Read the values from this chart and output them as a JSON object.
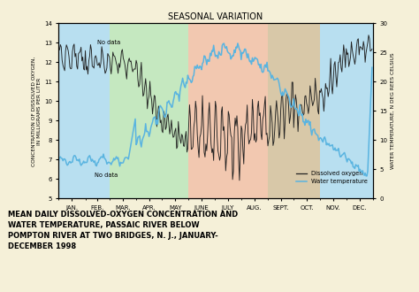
{
  "title": "SEASONAL VARIATION",
  "caption": "MEAN DAILY DISSOLVED-OXYGEN CONCENTRATION AND\nWATER TEMPERATURE, PASSAIC RIVER BELOW\nPOMPTON RIVER AT TWO BRIDGES, N. J., JANUARY-\nDECEMBER 1998",
  "ylabel_left": "CONCENTRATION OF DISSOLVED OXYGEN,\nIN MILLIGRAMS PER LITER",
  "ylabel_right": "WATER TEMPERATURE, N DEG REES CELSIUS",
  "xlabel_ticks": [
    "JAN.",
    "FEB.",
    "MAR.",
    "APR.",
    "MAY",
    "JUNE",
    "JULY",
    "AUG.",
    "SEPT.",
    "OCT.",
    "NOV.",
    "DEC."
  ],
  "ylim_left": [
    5,
    14
  ],
  "ylim_right": [
    0,
    30
  ],
  "yticks_left": [
    5,
    6,
    7,
    8,
    9,
    10,
    11,
    12,
    13,
    14
  ],
  "yticks_right": [
    0,
    5,
    10,
    15,
    20,
    25,
    30
  ],
  "background_color": "#f5f0d8",
  "seasons": [
    [
      0,
      59,
      "#b8dff0"
    ],
    [
      59,
      151,
      "#c5e8c0"
    ],
    [
      151,
      243,
      "#f2c8b0"
    ],
    [
      243,
      304,
      "#d8c8a8"
    ],
    [
      304,
      365,
      "#b8dff0"
    ]
  ],
  "no_data_annotations": [
    [
      45,
      12.9,
      "No data"
    ],
    [
      42,
      6.05,
      "No data"
    ]
  ],
  "legend_labels": [
    "Dissolved oxygen",
    "Water temperature"
  ],
  "do_color": "#222222",
  "temp_color": "#5ab4e0",
  "month_starts": [
    0,
    31,
    59,
    90,
    120,
    151,
    181,
    212,
    243,
    273,
    304,
    334,
    365
  ]
}
